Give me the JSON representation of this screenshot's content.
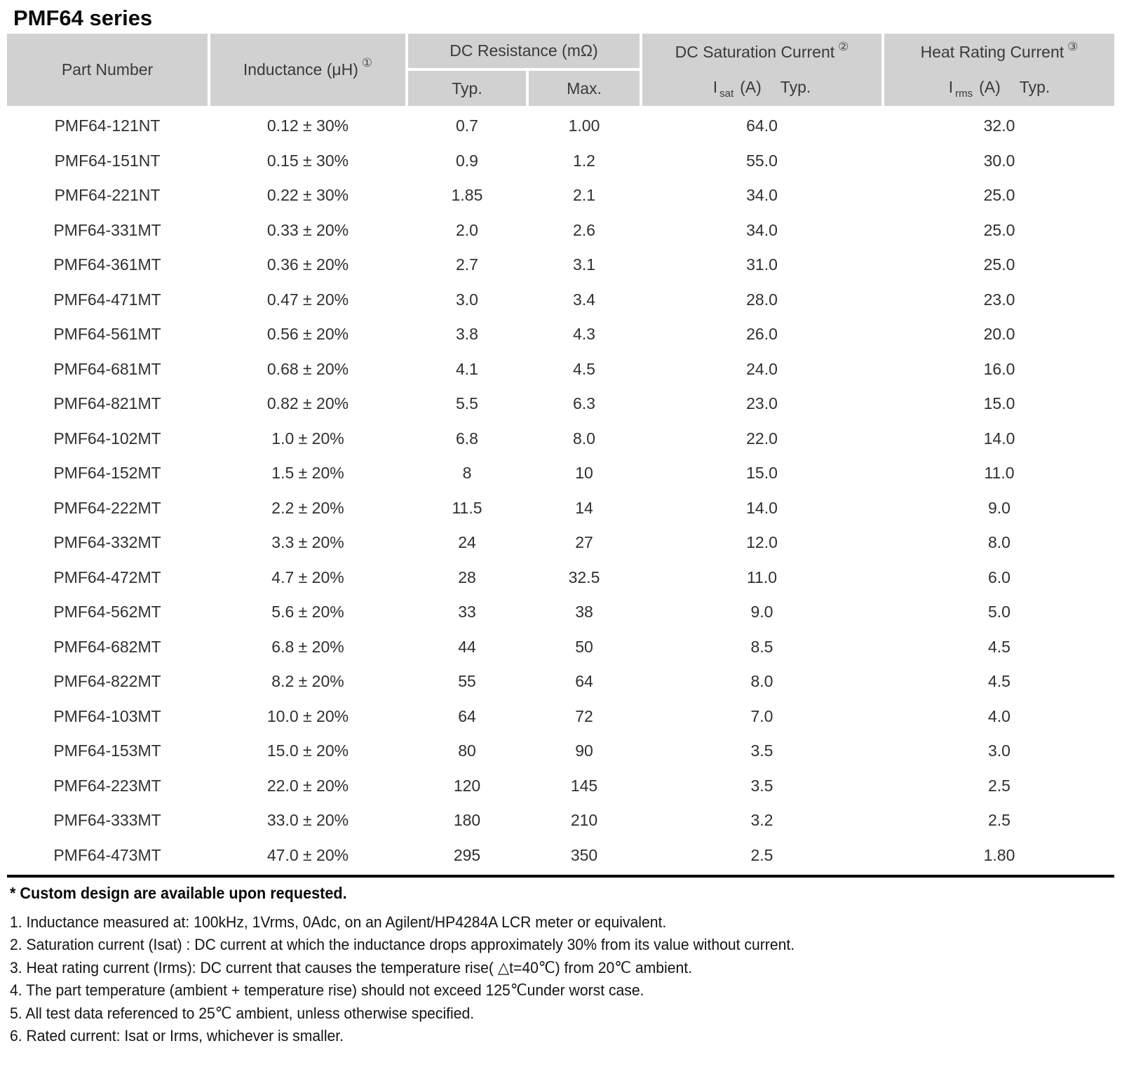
{
  "page": {
    "title": "PMF64 series"
  },
  "colors": {
    "header_bg": "#d1d1d1",
    "body_text": "#303030",
    "rule": "#000000"
  },
  "table": {
    "header": {
      "part_number": "Part Number",
      "inductance": "Inductance (μH)",
      "inductance_note": "①",
      "dc_resistance": "DC Resistance (mΩ)",
      "dcr_typ": "Typ.",
      "dcr_max": "Max.",
      "saturation": "DC Saturation Current",
      "saturation_note": "②",
      "sat_line2": {
        "symbol": "I",
        "subscript": "sat",
        "unit": "(A)",
        "typ": "Typ."
      },
      "heat": "Heat Rating Current",
      "heat_note": "③",
      "rms_line2": {
        "symbol": "I",
        "subscript": "rms",
        "unit": "(A)",
        "typ": "Typ."
      }
    },
    "rows": [
      [
        "PMF64-121NT",
        "0.12 ± 30%",
        "0.7",
        "1.00",
        "64.0",
        "32.0"
      ],
      [
        "PMF64-151NT",
        "0.15 ± 30%",
        "0.9",
        "1.2",
        "55.0",
        "30.0"
      ],
      [
        "PMF64-221NT",
        "0.22 ± 30%",
        "1.85",
        "2.1",
        "34.0",
        "25.0"
      ],
      [
        "PMF64-331MT",
        "0.33 ± 20%",
        "2.0",
        "2.6",
        "34.0",
        "25.0"
      ],
      [
        "PMF64-361MT",
        "0.36 ± 20%",
        "2.7",
        "3.1",
        "31.0",
        "25.0"
      ],
      [
        "PMF64-471MT",
        "0.47 ± 20%",
        "3.0",
        "3.4",
        "28.0",
        "23.0"
      ],
      [
        "PMF64-561MT",
        "0.56 ± 20%",
        "3.8",
        "4.3",
        "26.0",
        "20.0"
      ],
      [
        "PMF64-681MT",
        "0.68 ± 20%",
        "4.1",
        "4.5",
        "24.0",
        "16.0"
      ],
      [
        "PMF64-821MT",
        "0.82 ± 20%",
        "5.5",
        "6.3",
        "23.0",
        "15.0"
      ],
      [
        "PMF64-102MT",
        "1.0 ± 20%",
        "6.8",
        "8.0",
        "22.0",
        "14.0"
      ],
      [
        "PMF64-152MT",
        "1.5 ± 20%",
        "8",
        "10",
        "15.0",
        "11.0"
      ],
      [
        "PMF64-222MT",
        "2.2 ± 20%",
        "11.5",
        "14",
        "14.0",
        "9.0"
      ],
      [
        "PMF64-332MT",
        "3.3 ± 20%",
        "24",
        "27",
        "12.0",
        "8.0"
      ],
      [
        "PMF64-472MT",
        "4.7 ± 20%",
        "28",
        "32.5",
        "11.0",
        "6.0"
      ],
      [
        "PMF64-562MT",
        "5.6 ± 20%",
        "33",
        "38",
        "9.0",
        "5.0"
      ],
      [
        "PMF64-682MT",
        "6.8 ± 20%",
        "44",
        "50",
        "8.5",
        "4.5"
      ],
      [
        "PMF64-822MT",
        "8.2 ± 20%",
        "55",
        "64",
        "8.0",
        "4.5"
      ],
      [
        "PMF64-103MT",
        "10.0 ± 20%",
        "64",
        "72",
        "7.0",
        "4.0"
      ],
      [
        "PMF64-153MT",
        "15.0 ± 20%",
        "80",
        "90",
        "3.5",
        "3.0"
      ],
      [
        "PMF64-223MT",
        "22.0 ± 20%",
        "120",
        "145",
        "3.5",
        "2.5"
      ],
      [
        "PMF64-333MT",
        "33.0 ± 20%",
        "180",
        "210",
        "3.2",
        "2.5"
      ],
      [
        "PMF64-473MT",
        "47.0 ± 20%",
        "295",
        "350",
        "2.5",
        "1.80"
      ]
    ]
  },
  "notes": {
    "custom": "* Custom design are available upon requested.",
    "items": [
      "1. Inductance measured at: 100kHz, 1Vrms, 0Adc, on an Agilent/HP4284A LCR meter or equivalent.",
      "2. Saturation current (Isat) : DC current at which the inductance drops approximately 30% from its value without current.",
      "3. Heat rating current (Irms): DC current that causes the temperature rise( △t=40℃) from 20℃ ambient.",
      "4. The part temperature (ambient + temperature rise) should not exceed 125℃under worst case.",
      "5. All test data referenced to 25℃ ambient, unless otherwise specified.",
      "6. Rated current: Isat or Irms, whichever is smaller."
    ]
  }
}
